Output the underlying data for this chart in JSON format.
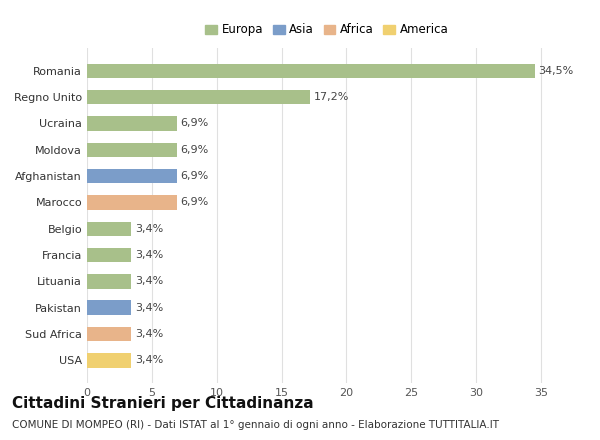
{
  "countries": [
    "Romania",
    "Regno Unito",
    "Ucraina",
    "Moldova",
    "Afghanistan",
    "Marocco",
    "Belgio",
    "Francia",
    "Lituania",
    "Pakistan",
    "Sud Africa",
    "USA"
  ],
  "values": [
    34.5,
    17.2,
    6.9,
    6.9,
    6.9,
    6.9,
    3.4,
    3.4,
    3.4,
    3.4,
    3.4,
    3.4
  ],
  "labels": [
    "34,5%",
    "17,2%",
    "6,9%",
    "6,9%",
    "6,9%",
    "6,9%",
    "3,4%",
    "3,4%",
    "3,4%",
    "3,4%",
    "3,4%",
    "3,4%"
  ],
  "continents": [
    "Europa",
    "Europa",
    "Europa",
    "Europa",
    "Asia",
    "Africa",
    "Europa",
    "Europa",
    "Europa",
    "Asia",
    "Africa",
    "America"
  ],
  "colors": {
    "Europa": "#a8c08a",
    "Asia": "#7b9dc9",
    "Africa": "#e8b48a",
    "America": "#f0d070"
  },
  "legend_order": [
    "Europa",
    "Asia",
    "Africa",
    "America"
  ],
  "title": "Cittadini Stranieri per Cittadinanza",
  "subtitle": "COMUNE DI MOMPEO (RI) - Dati ISTAT al 1° gennaio di ogni anno - Elaborazione TUTTITALIA.IT",
  "xlim": [
    0,
    37
  ],
  "xticks": [
    0,
    5,
    10,
    15,
    20,
    25,
    30,
    35
  ],
  "background_color": "#ffffff",
  "grid_color": "#e0e0e0",
  "title_fontsize": 11,
  "subtitle_fontsize": 7.5,
  "label_fontsize": 8,
  "ytick_fontsize": 8,
  "xtick_fontsize": 8,
  "bar_height": 0.55
}
